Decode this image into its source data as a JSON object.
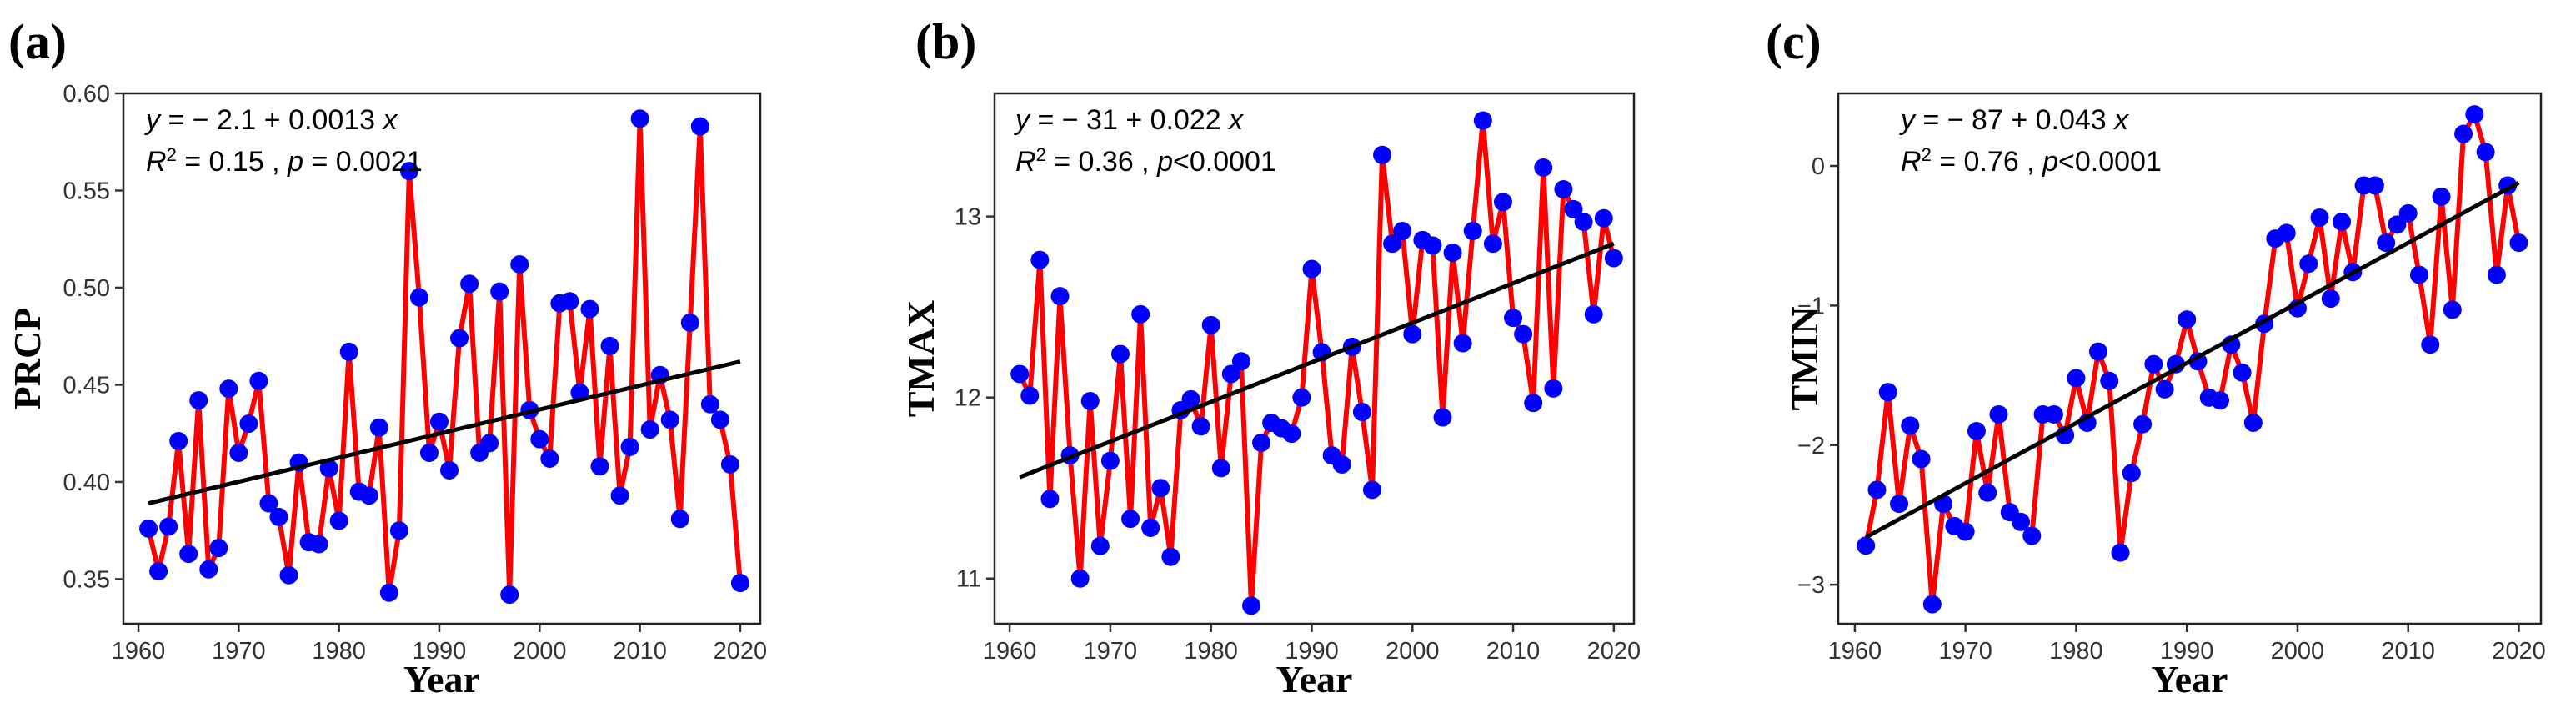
{
  "chart_data": [
    {
      "type": "line",
      "panel": "(a)",
      "xlabel": "Year",
      "ylabel": "PRCP",
      "xlim": [
        1958.5,
        2022
      ],
      "ylim": [
        0.327,
        0.6
      ],
      "xticks": [
        1960,
        1970,
        1980,
        1990,
        2000,
        2010,
        2020
      ],
      "xtick_labels": [
        "1960",
        "1970",
        "1980",
        "1990",
        "2000",
        "2010",
        "2020"
      ],
      "yticks": [
        0.35,
        0.4,
        0.45,
        0.5,
        0.55,
        0.6
      ],
      "ytick_labels": [
        "0.35",
        "0.40",
        "0.45",
        "0.50",
        "0.55",
        "0.60"
      ],
      "equation": "y = − 2.1 + 0.0013 x",
      "stats": "R² = 0.15 , p = 0.0021",
      "line_color": "#ff0000",
      "point_color": "#0000ff",
      "fit_color": "#000000",
      "x": [
        1961,
        1962,
        1963,
        1964,
        1965,
        1966,
        1967,
        1968,
        1969,
        1970,
        1971,
        1972,
        1973,
        1974,
        1975,
        1976,
        1977,
        1978,
        1979,
        1980,
        1981,
        1982,
        1983,
        1984,
        1985,
        1986,
        1987,
        1988,
        1989,
        1990,
        1991,
        1992,
        1993,
        1994,
        1995,
        1996,
        1997,
        1998,
        1999,
        2000,
        2001,
        2002,
        2003,
        2004,
        2005,
        2006,
        2007,
        2008,
        2009,
        2010,
        2011,
        2012,
        2013,
        2014,
        2015,
        2016,
        2017,
        2018,
        2019,
        2020
      ],
      "values": [
        0.376,
        0.354,
        0.377,
        0.421,
        0.363,
        0.442,
        0.355,
        0.366,
        0.448,
        0.415,
        0.43,
        0.452,
        0.389,
        0.382,
        0.352,
        0.41,
        0.369,
        0.368,
        0.407,
        0.38,
        0.467,
        0.395,
        0.393,
        0.428,
        0.343,
        0.375,
        0.56,
        0.495,
        0.415,
        0.431,
        0.406,
        0.474,
        0.502,
        0.415,
        0.42,
        0.498,
        0.342,
        0.512,
        0.437,
        0.422,
        0.412,
        0.492,
        0.493,
        0.446,
        0.489,
        0.408,
        0.47,
        0.393,
        0.418,
        0.587,
        0.427,
        0.455,
        0.432,
        0.381,
        0.482,
        0.583,
        0.44,
        0.432,
        0.409,
        0.348
      ],
      "fit": {
        "x": [
          1961,
          2020
        ],
        "y": [
          0.389,
          0.462
        ]
      }
    },
    {
      "type": "line",
      "panel": "(b)",
      "xlabel": "Year",
      "ylabel": "TMAX",
      "xlim": [
        1958.5,
        2022
      ],
      "ylim": [
        10.75,
        13.68
      ],
      "xticks": [
        1960,
        1970,
        1980,
        1990,
        2000,
        2010,
        2020
      ],
      "xtick_labels": [
        "1960",
        "1970",
        "1980",
        "1990",
        "2000",
        "2010",
        "2020"
      ],
      "yticks": [
        11,
        12,
        13
      ],
      "ytick_labels": [
        "11",
        "12",
        "13"
      ],
      "equation": "y = − 31 + 0.022 x",
      "stats": "R² = 0.36 , p<0.0001",
      "line_color": "#ff0000",
      "point_color": "#0000ff",
      "fit_color": "#000000",
      "x": [
        1961,
        1962,
        1963,
        1964,
        1965,
        1966,
        1967,
        1968,
        1969,
        1970,
        1971,
        1972,
        1973,
        1974,
        1975,
        1976,
        1977,
        1978,
        1979,
        1980,
        1981,
        1982,
        1983,
        1984,
        1985,
        1986,
        1987,
        1988,
        1989,
        1990,
        1991,
        1992,
        1993,
        1994,
        1995,
        1996,
        1997,
        1998,
        1999,
        2000,
        2001,
        2002,
        2003,
        2004,
        2005,
        2006,
        2007,
        2008,
        2009,
        2010,
        2011,
        2012,
        2013,
        2014,
        2015,
        2016,
        2017,
        2018,
        2019,
        2020
      ],
      "values": [
        12.13,
        12.01,
        12.76,
        11.44,
        12.56,
        11.68,
        11.0,
        11.98,
        11.18,
        11.65,
        12.24,
        11.33,
        12.46,
        11.28,
        11.5,
        11.12,
        11.93,
        11.99,
        11.84,
        12.4,
        11.61,
        12.13,
        12.2,
        10.85,
        11.75,
        11.86,
        11.83,
        11.8,
        12.0,
        12.71,
        12.25,
        11.68,
        11.63,
        12.28,
        11.92,
        11.49,
        13.34,
        12.85,
        12.92,
        12.35,
        12.87,
        12.84,
        11.89,
        12.8,
        12.3,
        12.92,
        13.53,
        12.85,
        13.08,
        12.44,
        12.35,
        11.97,
        13.27,
        12.05,
        13.15,
        13.04,
        12.97,
        12.46,
        12.99,
        12.77
      ],
      "fit": {
        "x": [
          1961,
          2020
        ],
        "y": [
          11.56,
          12.85
        ]
      }
    },
    {
      "type": "line",
      "panel": "(c)",
      "xlabel": "Year",
      "ylabel": "TMIN",
      "xlim": [
        1958.5,
        2022
      ],
      "ylim": [
        -3.28,
        0.52
      ],
      "xticks": [
        1960,
        1970,
        1980,
        1990,
        2000,
        2010,
        2020
      ],
      "xtick_labels": [
        "1960",
        "1970",
        "1980",
        "1990",
        "2000",
        "2010",
        "2020"
      ],
      "yticks": [
        -3,
        -2,
        -1,
        0
      ],
      "ytick_labels": [
        "−3",
        "−2",
        "−1",
        "0"
      ],
      "equation": "y = − 87 + 0.043 x",
      "stats": "R² = 0.76 , p<0.0001",
      "line_color": "#ff0000",
      "point_color": "#0000ff",
      "fit_color": "#000000",
      "x": [
        1961,
        1962,
        1963,
        1964,
        1965,
        1966,
        1967,
        1968,
        1969,
        1970,
        1971,
        1972,
        1973,
        1974,
        1975,
        1976,
        1977,
        1978,
        1979,
        1980,
        1981,
        1982,
        1983,
        1984,
        1985,
        1986,
        1987,
        1988,
        1989,
        1990,
        1991,
        1992,
        1993,
        1994,
        1995,
        1996,
        1997,
        1998,
        1999,
        2000,
        2001,
        2002,
        2003,
        2004,
        2005,
        2006,
        2007,
        2008,
        2009,
        2010,
        2011,
        2012,
        2013,
        2014,
        2015,
        2016,
        2017,
        2018,
        2019,
        2020
      ],
      "values": [
        -2.72,
        -2.32,
        -1.62,
        -2.42,
        -1.86,
        -2.1,
        -3.14,
        -2.42,
        -2.58,
        -2.62,
        -1.9,
        -2.34,
        -1.78,
        -2.48,
        -2.55,
        -2.65,
        -1.78,
        -1.78,
        -1.93,
        -1.52,
        -1.84,
        -1.33,
        -1.54,
        -2.77,
        -2.2,
        -1.85,
        -1.42,
        -1.6,
        -1.42,
        -1.1,
        -1.4,
        -1.66,
        -1.68,
        -1.28,
        -1.48,
        -1.84,
        -1.13,
        -0.52,
        -0.48,
        -1.02,
        -0.7,
        -0.37,
        -0.95,
        -0.4,
        -0.76,
        -0.14,
        -0.14,
        -0.55,
        -0.42,
        -0.34,
        -0.78,
        -1.28,
        -0.22,
        -1.03,
        0.23,
        0.37,
        0.1,
        -0.78,
        -0.14,
        -0.55
      ],
      "fit": {
        "x": [
          1961,
          2020
        ],
        "y": [
          -2.66,
          -0.12
        ]
      }
    }
  ]
}
